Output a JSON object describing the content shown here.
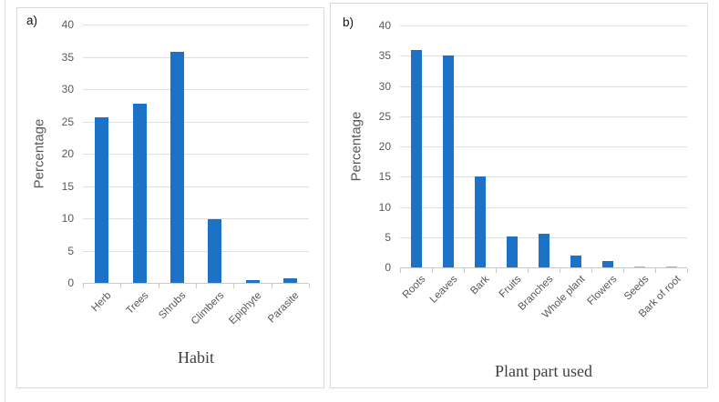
{
  "figure": {
    "background": "#ffffff",
    "panel_border_color": "#d9d9d9",
    "gridline_color": "#e0e0e0",
    "axis_line_color": "#c9c9c9",
    "tick_label_color": "#595959",
    "bar_color": "#1c72c7",
    "thin_bar_color": "#8fb8e4"
  },
  "chart_data": [
    {
      "type": "bar",
      "panel_label": "a)",
      "title": "",
      "xlabel": "Habit",
      "ylabel": "Percentage",
      "categories": [
        "Herb",
        "Trees",
        "Shrubs",
        "Climbers",
        "Epiphyte",
        "Parasite"
      ],
      "values": [
        25.7,
        27.7,
        35.8,
        9.8,
        0.4,
        0.7
      ],
      "ylim": [
        0,
        40
      ],
      "ytick_step": 5,
      "grid": true,
      "legend": "none",
      "bar_color": "#1c72c7"
    },
    {
      "type": "bar",
      "panel_label": "b)",
      "title": "",
      "xlabel": "Plant part used",
      "ylabel": "Percentage",
      "categories": [
        "Roots",
        "Leaves",
        "Bark",
        "Fruits",
        "Branches",
        "Whole plant",
        "Flowers",
        "Seeds",
        "Bark of root"
      ],
      "values": [
        36,
        35,
        15,
        5.1,
        5.5,
        2,
        1.1,
        0.2,
        0.2
      ],
      "ylim": [
        0,
        40
      ],
      "ytick_step": 5,
      "grid": true,
      "legend": "none",
      "bar_color": "#1c72c7"
    }
  ]
}
